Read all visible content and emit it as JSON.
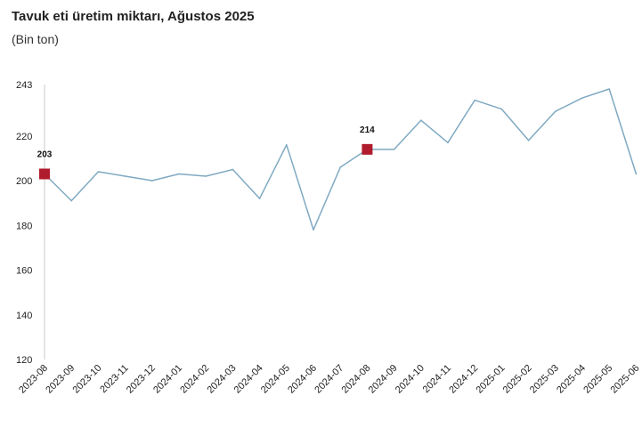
{
  "chart_data": {
    "type": "line",
    "title": "Tavuk eti üretim miktarı, Ağustos 2025",
    "subtitle": "(Bin ton)",
    "xlabel": "",
    "ylabel": "",
    "ylim": [
      120,
      243
    ],
    "yticks": [
      120,
      140,
      160,
      180,
      200,
      220,
      243
    ],
    "categories": [
      "2023-08",
      "2023-09",
      "2023-10",
      "2023-11",
      "2023-12",
      "2024-01",
      "2024-02",
      "2024-03",
      "2024-04",
      "2024-05",
      "2024-06",
      "2024-07",
      "2024-08",
      "2024-09",
      "2024-10",
      "2024-11",
      "2024-12",
      "2025-01",
      "2025-02",
      "2025-03",
      "2025-04",
      "2025-05",
      "2025-06"
    ],
    "series": [
      {
        "name": "Tavuk eti üretim miktarı",
        "color": "#7fa9c1",
        "values": [
          203,
          191,
          204,
          202,
          200,
          203,
          202,
          205,
          192,
          216,
          178,
          206,
          214,
          214,
          227,
          217,
          236,
          232,
          218,
          231,
          237,
          241,
          203
        ]
      }
    ],
    "highlights": [
      {
        "category": "2023-08",
        "value": 203,
        "label": "203",
        "color": "#b01c2e"
      },
      {
        "category": "2024-08",
        "value": 214,
        "label": "214",
        "color": "#b01c2e"
      }
    ],
    "grid": false,
    "legend": "none"
  }
}
